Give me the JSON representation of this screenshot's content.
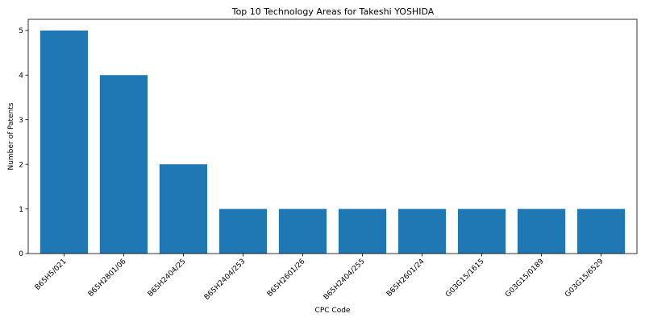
{
  "chart_data": {
    "type": "bar",
    "title": "Top 10 Technology Areas for Takeshi YOSHIDA",
    "xlabel": "CPC Code",
    "ylabel": "Number of Patents",
    "categories": [
      "B65H5/021",
      "B65H2801/06",
      "B65H2404/25",
      "B65H2404/253",
      "B65H2601/26",
      "B65H2404/255",
      "B65H2601/24",
      "G03G15/1615",
      "G03G15/0189",
      "G03G15/6529"
    ],
    "values": [
      5,
      4,
      2,
      1,
      1,
      1,
      1,
      1,
      1,
      1
    ],
    "yticks": [
      0,
      1,
      2,
      3,
      4,
      5
    ],
    "ylim": [
      0,
      5.25
    ],
    "bar_color": "#1f77b4",
    "grid": false,
    "legend": "none"
  }
}
